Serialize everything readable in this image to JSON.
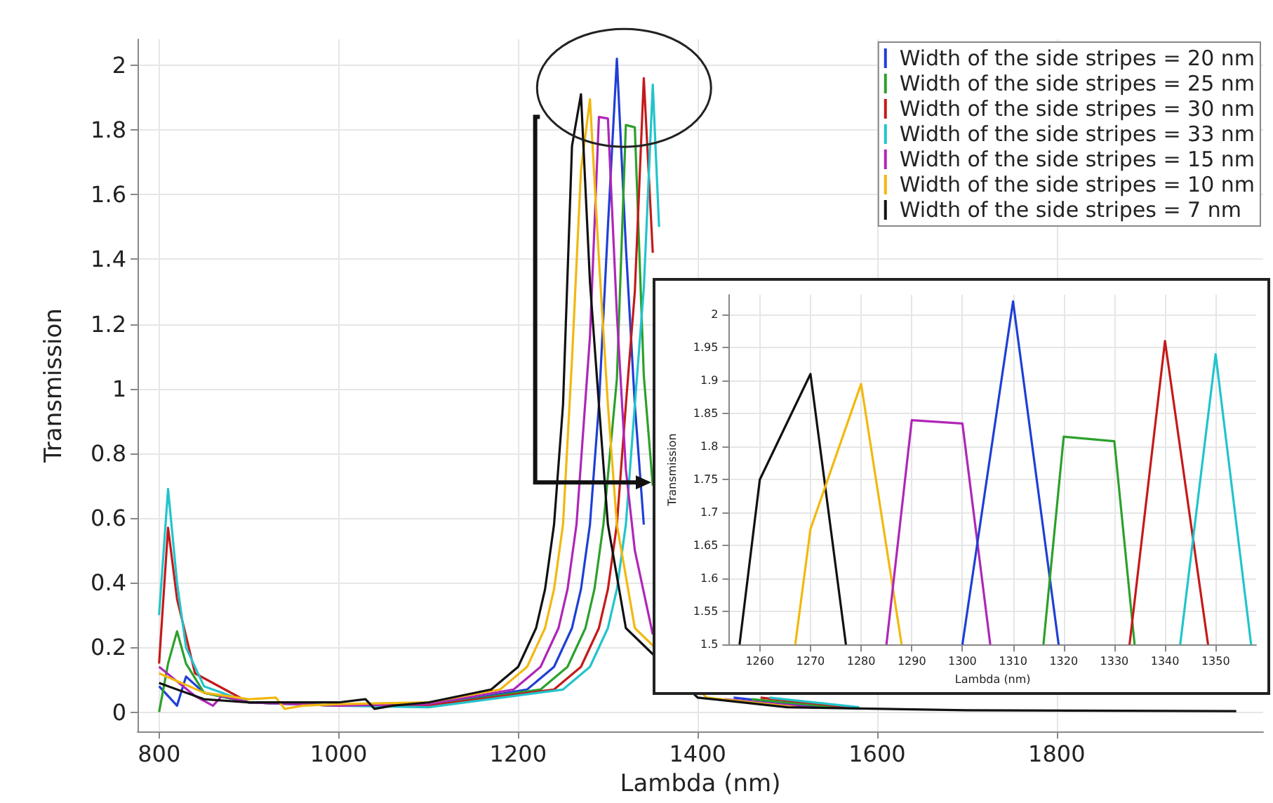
{
  "chart_data": [
    {
      "type": "line",
      "xlabel": "Lambda (nm)",
      "ylabel": "Transmission",
      "xlim": [
        776,
        2030
      ],
      "ylim": [
        -0.06,
        2.08
      ],
      "xticks": [
        800,
        1000,
        1200,
        1400,
        1600,
        1800
      ],
      "yticks": [
        0,
        0.2,
        0.4,
        0.6,
        0.8,
        1,
        1.2,
        1.4,
        1.6,
        1.8,
        2
      ],
      "grid": true,
      "legend": "top right",
      "series": [
        {
          "name": "Width of the side stripes = 20 nm",
          "color": "#1f3fd6",
          "x": [
            800,
            820,
            830,
            850,
            900,
            1000,
            1100,
            1210,
            1240,
            1260,
            1270,
            1280,
            1290,
            1300,
            1310,
            1320,
            1330,
            1340,
            1360,
            1440,
            1540
          ],
          "values": [
            0.08,
            0.02,
            0.11,
            0.06,
            0.03,
            0.02,
            0.02,
            0.07,
            0.14,
            0.26,
            0.38,
            0.58,
            0.95,
            1.5,
            2.02,
            1.44,
            0.95,
            0.58,
            null,
            0.045,
            0.015
          ]
        },
        {
          "name": "Width of the side stripes = 25 nm",
          "color": "#2ca02c",
          "x": [
            800,
            810,
            820,
            830,
            850,
            900,
            1000,
            1100,
            1225,
            1255,
            1275,
            1285,
            1295,
            1310,
            1320,
            1330,
            1340,
            1350,
            1360,
            1460,
            1560
          ],
          "values": [
            0.0,
            0.15,
            0.25,
            0.15,
            0.06,
            0.03,
            0.02,
            0.02,
            0.07,
            0.14,
            0.26,
            0.38,
            0.58,
            1.03,
            1.815,
            1.808,
            1.04,
            0.7,
            null,
            0.04,
            0.014
          ]
        },
        {
          "name": "Width of the side stripes = 30 nm",
          "color": "#c41a1a",
          "x": [
            800,
            810,
            820,
            840,
            900,
            1000,
            1100,
            1240,
            1270,
            1290,
            1300,
            1310,
            1320,
            1330,
            1340,
            1350,
            1360,
            1470,
            1570
          ],
          "values": [
            0.15,
            0.57,
            0.35,
            0.12,
            0.03,
            0.02,
            0.02,
            0.07,
            0.14,
            0.26,
            0.38,
            0.58,
            0.95,
            1.3,
            1.96,
            1.42,
            null,
            0.045,
            0.015
          ]
        },
        {
          "name": "Width of the side stripes = 33 nm",
          "color": "#22c4cc",
          "x": [
            800,
            810,
            820,
            830,
            850,
            900,
            1000,
            1100,
            1250,
            1280,
            1300,
            1310,
            1320,
            1330,
            1340,
            1350,
            1357,
            1360,
            1480,
            1580
          ],
          "values": [
            0.3,
            0.69,
            0.4,
            0.2,
            0.08,
            0.03,
            0.02,
            0.015,
            0.07,
            0.14,
            0.26,
            0.38,
            0.58,
            0.95,
            1.31,
            1.94,
            1.5,
            null,
            0.045,
            0.015
          ]
        },
        {
          "name": "Width of the side stripes = 15 nm",
          "color": "#b026b8",
          "x": [
            800,
            840,
            860,
            870,
            900,
            1000,
            1100,
            1195,
            1225,
            1245,
            1255,
            1265,
            1280,
            1290,
            1300,
            1310,
            1320,
            1330,
            1350,
            1360,
            1430,
            1530
          ],
          "values": [
            0.14,
            0.05,
            0.02,
            0.05,
            0.03,
            0.02,
            0.025,
            0.07,
            0.14,
            0.26,
            0.38,
            0.58,
            1.16,
            1.84,
            1.835,
            1.23,
            0.75,
            0.5,
            0.24,
            null,
            0.04,
            0.014
          ]
        },
        {
          "name": "Width of the side stripes = 10 nm",
          "color": "#f2b80f",
          "x": [
            800,
            850,
            900,
            930,
            940,
            960,
            1000,
            1100,
            1180,
            1210,
            1230,
            1240,
            1250,
            1260,
            1270,
            1280,
            1290,
            1300,
            1310,
            1330,
            1410,
            1510
          ],
          "values": [
            0.12,
            0.06,
            0.04,
            0.045,
            0.01,
            0.02,
            0.025,
            0.03,
            0.07,
            0.14,
            0.26,
            0.38,
            0.58,
            1.09,
            1.675,
            1.895,
            1.4,
            0.95,
            0.58,
            0.26,
            0.045,
            0.015
          ]
        },
        {
          "name": "Width of the side stripes = 7 nm",
          "color": "#111111",
          "x": [
            800,
            850,
            900,
            1000,
            1030,
            1040,
            1060,
            1100,
            1170,
            1200,
            1220,
            1230,
            1240,
            1250,
            1260,
            1270,
            1280,
            1290,
            1300,
            1320,
            1400,
            1500,
            1700,
            2000
          ],
          "values": [
            0.09,
            0.04,
            0.03,
            0.03,
            0.04,
            0.01,
            0.02,
            0.03,
            0.07,
            0.14,
            0.26,
            0.38,
            0.58,
            0.95,
            1.75,
            1.91,
            1.33,
            0.95,
            0.58,
            0.26,
            0.045,
            0.015,
            0.006,
            0.003
          ]
        }
      ]
    },
    {
      "type": "line",
      "xlabel": "Lambda (nm)",
      "ylabel": "Transmission",
      "xlim": [
        1254,
        1358
      ],
      "ylim": [
        1.5,
        2.03
      ],
      "xticks": [
        1260,
        1270,
        1280,
        1290,
        1300,
        1310,
        1320,
        1330,
        1340,
        1350
      ],
      "yticks": [
        1.5,
        1.55,
        1.6,
        1.65,
        1.7,
        1.75,
        1.8,
        1.85,
        1.9,
        1.95,
        2
      ],
      "grid": true,
      "series": [
        {
          "color": "#111111",
          "x": [
            1256,
            1260,
            1270,
            1277
          ],
          "values": [
            1.5,
            1.75,
            1.91,
            1.5
          ]
        },
        {
          "color": "#f2b80f",
          "x": [
            1267,
            1270,
            1280,
            1288
          ],
          "values": [
            1.5,
            1.675,
            1.895,
            1.5
          ]
        },
        {
          "color": "#b026b8",
          "x": [
            1285,
            1290,
            1300,
            1305.5
          ],
          "values": [
            1.5,
            1.84,
            1.835,
            1.5
          ]
        },
        {
          "color": "#1f3fd6",
          "x": [
            1300,
            1310,
            1319
          ],
          "values": [
            1.5,
            2.02,
            1.5
          ]
        },
        {
          "color": "#2ca02c",
          "x": [
            1316,
            1320,
            1330,
            1334
          ],
          "values": [
            1.5,
            1.815,
            1.808,
            1.5
          ]
        },
        {
          "color": "#c41a1a",
          "x": [
            1333,
            1340,
            1348.5
          ],
          "values": [
            1.5,
            1.96,
            1.5
          ]
        },
        {
          "color": "#22c4cc",
          "x": [
            1343,
            1350,
            1357
          ],
          "values": [
            1.5,
            1.94,
            1.5
          ]
        }
      ]
    }
  ]
}
